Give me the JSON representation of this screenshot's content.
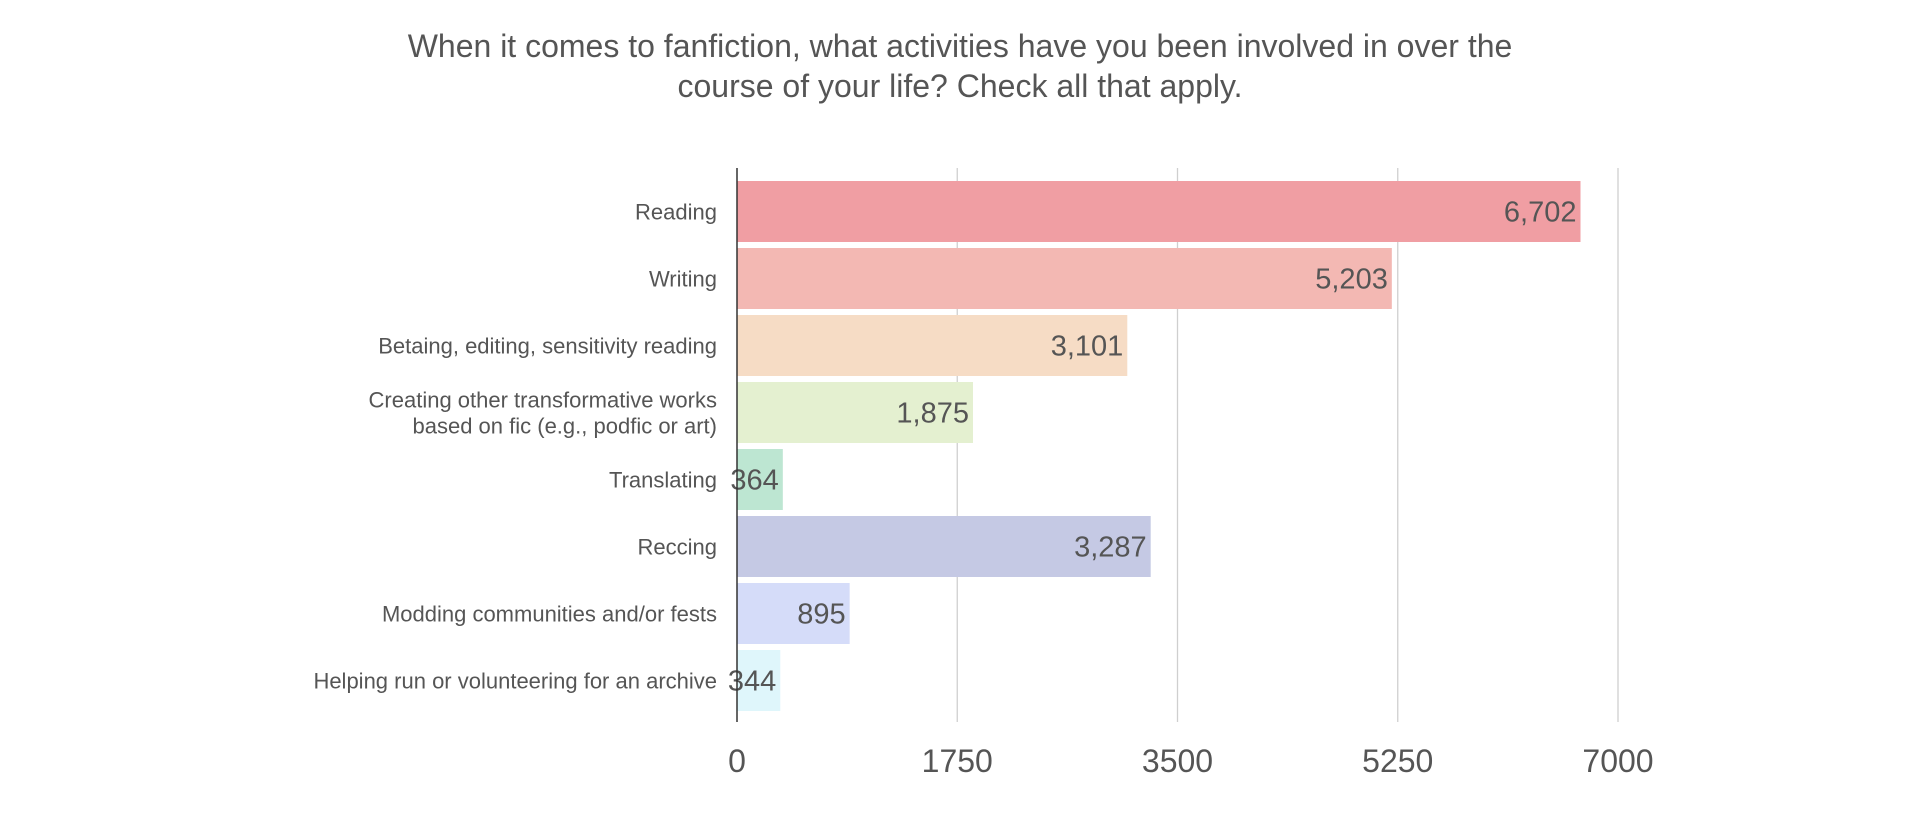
{
  "chart_data": {
    "type": "bar",
    "orientation": "horizontal",
    "title_lines": [
      "When it comes to fanfiction, what activities have you been involved in over the",
      "course of your life? Check all that apply."
    ],
    "categories": [
      [
        "Reading"
      ],
      [
        "Writing"
      ],
      [
        "Betaing, editing, sensitivity reading"
      ],
      [
        "Creating other transformative works",
        "based on fic (e.g., podfic or art)"
      ],
      [
        "Translating"
      ],
      [
        "Reccing"
      ],
      [
        "Modding communities and/or fests"
      ],
      [
        "Helping run or volunteering for an archive"
      ]
    ],
    "values": [
      6702,
      5203,
      3101,
      1875,
      364,
      3287,
      895,
      344
    ],
    "value_labels": [
      "6,702",
      "5,203",
      "3,101",
      "1,875",
      "364",
      "3,287",
      "895",
      "344"
    ],
    "colors": [
      "#f09ea3",
      "#f3b8b3",
      "#f6dcc5",
      "#e4f0d0",
      "#bde6d2",
      "#c5c9e4",
      "#d5dcf9",
      "#dff6fb"
    ],
    "xlim": [
      0,
      7000
    ],
    "xticks": [
      0,
      1750,
      3500,
      5250,
      7000
    ],
    "xtick_labels": [
      "0",
      "1750",
      "3500",
      "5250",
      "7000"
    ],
    "grid": true,
    "xlabel": "",
    "ylabel": ""
  }
}
